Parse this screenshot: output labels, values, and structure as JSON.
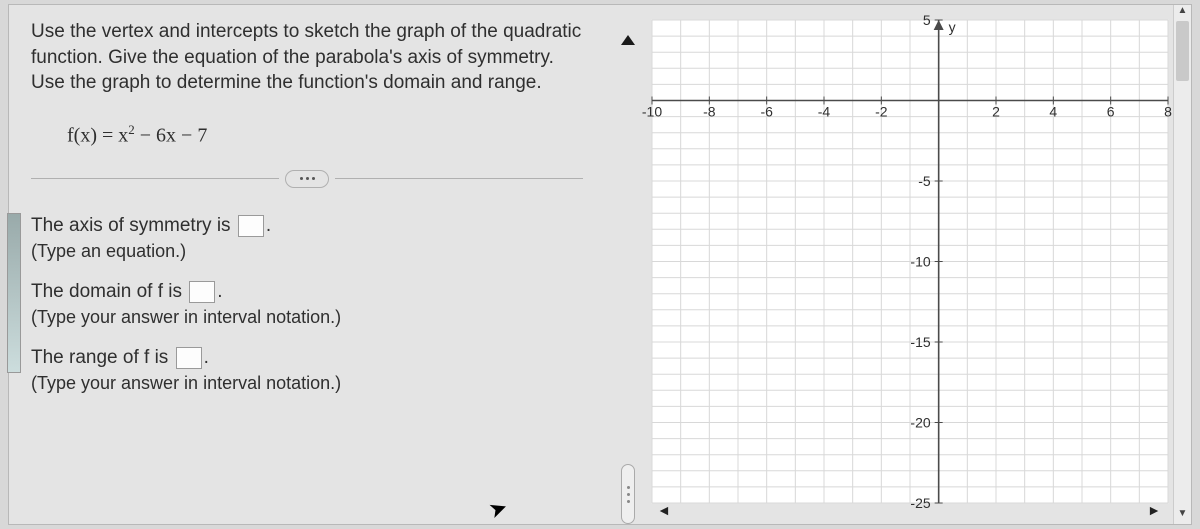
{
  "question": {
    "prompt": "Use the vertex and intercepts to sketch the graph of the quadratic function. Give the equation of the parabola's axis of symmetry. Use the graph to determine the function's domain and range.",
    "formula_prefix": "f(x) = x",
    "formula_exp": "2",
    "formula_suffix": " − 6x − 7"
  },
  "answers": {
    "axis_label": "The axis of symmetry is ",
    "axis_hint": "(Type an equation.)",
    "domain_label": "The domain of f is ",
    "domain_hint": "(Type your answer in interval notation.)",
    "range_label": "The range of f is ",
    "range_hint": "(Type your answer in interval notation.)",
    "period": "."
  },
  "graph": {
    "x_min": -10,
    "x_max": 8,
    "x_tick_step": 2,
    "y_min": -25,
    "y_max": 5,
    "y_tick_step": 5,
    "y_axis_label": "y",
    "grid_color": "#d8d8d8",
    "axis_color": "#4a4a4a",
    "tick_label_color": "#2f2f2f",
    "tick_font_size": 14,
    "background_color": "#ffffff",
    "x_ticks": [
      -10,
      -8,
      -6,
      -4,
      -2,
      2,
      4,
      6,
      8
    ],
    "y_ticks": [
      5,
      -5,
      -10,
      -15,
      -20,
      -25
    ]
  },
  "nav": {
    "left": "◄",
    "right": "►",
    "up": "▲",
    "down": "▼"
  }
}
